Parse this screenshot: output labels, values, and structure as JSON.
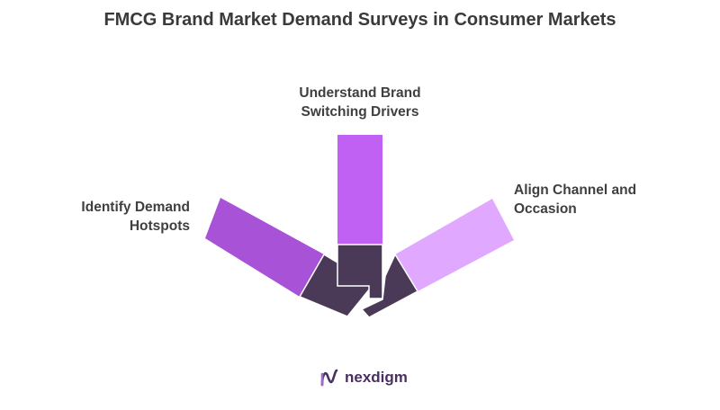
{
  "title": "FMCG Brand Market Demand Surveys in Consumer Markets",
  "items": [
    {
      "line1": "Understand Brand",
      "line2": "Switching Drivers",
      "color": "#c161f4"
    },
    {
      "line1": "Identify Demand",
      "line2": "Hotspots",
      "color": "#a752d7"
    },
    {
      "line1": "Align Channel and",
      "line2": "Occasion",
      "color": "#e0a8ff"
    }
  ],
  "hub_color": "#4a3a57",
  "brand": {
    "name": "nexdigm",
    "color": "#4a3060",
    "icon": "nexdigm-logo-icon"
  }
}
